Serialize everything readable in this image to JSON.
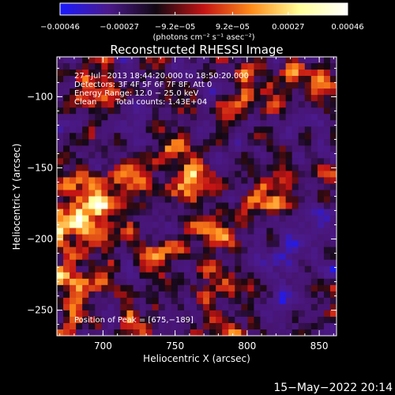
{
  "chart_data": {
    "type": "heatmap",
    "title": "Reconstructed RHESSI Image",
    "xlabel": "Heliocentric X (arcsec)",
    "ylabel": "Heliocentric Y (arcsec)",
    "xlim": [
      668,
      862
    ],
    "ylim": [
      -268,
      -72
    ],
    "xticks": [
      700,
      750,
      800,
      850
    ],
    "yticks": [
      -100,
      -150,
      -200,
      -250
    ],
    "colorbar": {
      "min": -0.00046,
      "max": 0.00046,
      "ticks": [
        {
          "value": -0.00046,
          "label": "−0.00046"
        },
        {
          "value": -0.00027,
          "label": "−0.00027"
        },
        {
          "value": -9.2e-05,
          "label": "−9.2e−05"
        },
        {
          "value": 9.2e-05,
          "label": "9.2e−05"
        },
        {
          "value": 0.00027,
          "label": "0.00027"
        },
        {
          "value": 0.00046,
          "label": "0.00046"
        }
      ],
      "units": "(photons cm⁻² s⁻¹ asec⁻²)",
      "colors": [
        "#1a1aff",
        "#4b1a8c",
        "#120812",
        "#c41414",
        "#ff8c1a",
        "#ffff99",
        "#ffffff"
      ]
    },
    "annotations": [
      "27−Jul−2013 18:44:20.000 to 18:50:20.000",
      "Detectors: 3F 4F 5F 6F 7F 8F, Att 0",
      "Energy Range: 12.0 − 25.0 keV",
      "Clean",
      "Total counts: 1.43E+04",
      "Position of Peak = [675,−189]"
    ],
    "peak": {
      "x": 675,
      "y": -189
    },
    "footer_date": "15−May−2022 20:14"
  }
}
